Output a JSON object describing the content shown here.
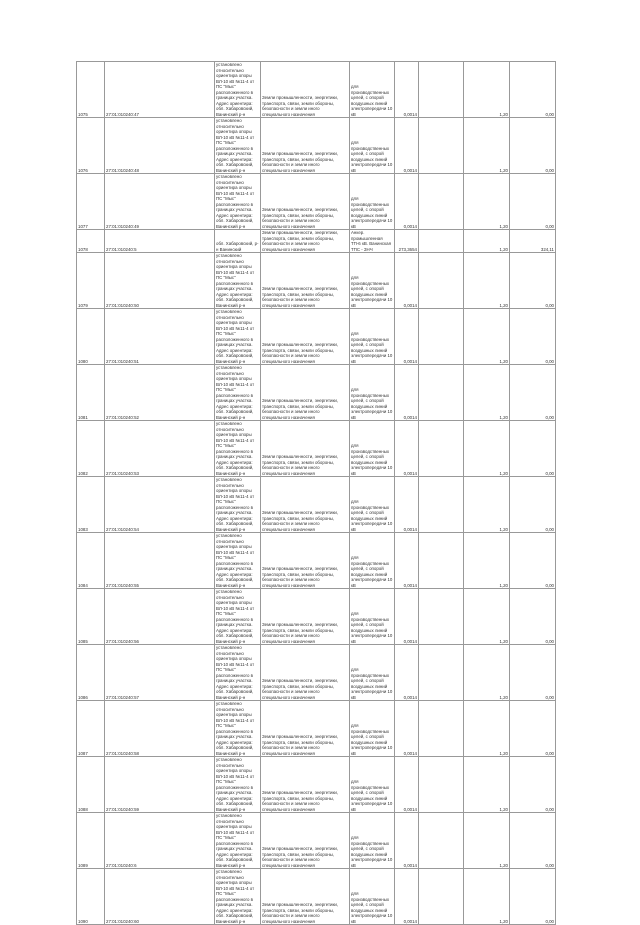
{
  "rows": [
    {
      "no": "1075",
      "cad": "27:01:010240:47",
      "loc": "установлено относительно ориентира опоры ВЛ-10 кВ №11-4 от ПС \"Мыс\" расположенного в границах участка. Адрес ориентира: обл. Хабаровский, Ванинский р-н",
      "cat": "Земли промышленности, энергетики, транспорта, связи, земли обороны, безопасности и земли иного специального назначения",
      "use": "для производственных целей, с опорой воздушных линий электропередачи 10 кВ",
      "area": "0,0014",
      "rate": "1,20",
      "sum": "0,00"
    },
    {
      "no": "1076",
      "cad": "27:01:010240:48",
      "loc": "установлено относительно ориентира опоры ВЛ-10 кВ №11-4 от ПС \"Мыс\" расположенного в границах участка. Адрес ориентира: обл. Хабаровский, Ванинский р-н",
      "cat": "Земли промышленности, энергетики, транспорта, связи, земли обороны, безопасности и земли иного специального назначения",
      "use": "для производственных целей, с опорой воздушных линий электропередачи 10 кВ",
      "area": "0,0014",
      "rate": "1,20",
      "sum": "0,00"
    },
    {
      "no": "1077",
      "cad": "27:01:010240:49",
      "loc": "установлено относительно ориентира опоры ВЛ-10 кВ №11-4 от ПС \"Мыс\" расположенного в границах участка. Адрес ориентира: обл. Хабаровский, Ванинский р-н",
      "cat": "Земли промышленности, энергетики, транспорта, связи, земли обороны, безопасности и земли иного специального назначения",
      "use": "для производственных целей, с опорой воздушных линий электропередачи 10 кВ",
      "area": "0,0014",
      "rate": "1,20",
      "sum": "0,00"
    },
    {
      "no": "1078",
      "cad": "27:01:010240:5",
      "loc": "обл. Хабаровский, р-н Ванинский",
      "cat": "Земли промышленности, энергетики, транспорта, связи, земли обороны, безопасности и земли иного специального назначения",
      "use": "Анкер. промышленная ТП-6 кВ. Ванинская ТПС - ЗНЧ",
      "area": "273,3654",
      "rate": "1,20",
      "sum": "324,11"
    },
    {
      "no": "1079",
      "cad": "27:01:010240:50",
      "loc": "установлено относительно ориентира опоры ВЛ-10 кВ №11-4 от ПС \"Мыс\" расположенного в границах участка. Адрес ориентира: обл. Хабаровский, Ванинский р-н",
      "cat": "Земли промышленности, энергетики, транспорта, связи, земли обороны, безопасности и земли иного специального назначения",
      "use": "для производственных целей, с опорой воздушных линий электропередачи 10 кВ",
      "area": "0,0014",
      "rate": "1,20",
      "sum": "0,00"
    },
    {
      "no": "1080",
      "cad": "27:01:010240:51",
      "loc": "установлено относительно ориентира опоры ВЛ-10 кВ №11-4 от ПС \"Мыс\" расположенного в границах участка. Адрес ориентира: обл. Хабаровский, Ванинский р-н",
      "cat": "Земли промышленности, энергетики, транспорта, связи, земли обороны, безопасности и земли иного специального назначения",
      "use": "для производственных целей, с опорой воздушных линий электропередачи 10 кВ",
      "area": "0,0014",
      "rate": "1,20",
      "sum": "0,00"
    },
    {
      "no": "1081",
      "cad": "27:01:010240:52",
      "loc": "установлено относительно ориентира опоры ВЛ-10 кВ №11-4 от ПС \"Мыс\" расположенного в границах участка. Адрес ориентира: обл. Хабаровский, Ванинский р-н",
      "cat": "Земли промышленности, энергетики, транспорта, связи, земли обороны, безопасности и земли иного специального назначения",
      "use": "для производственных целей, с опорой воздушных линий электропередачи 10 кВ",
      "area": "0,0014",
      "rate": "1,20",
      "sum": "0,00"
    },
    {
      "no": "1082",
      "cad": "27:01:010240:53",
      "loc": "установлено относительно ориентира опоры ВЛ-10 кВ №11-4 от ПС \"Мыс\" расположенного в границах участка. Адрес ориентира: обл. Хабаровский, Ванинский р-н",
      "cat": "Земли промышленности, энергетики, транспорта, связи, земли обороны, безопасности и земли иного специального назначения",
      "use": "для производственных целей, с опорой воздушных линий электропередачи 10 кВ",
      "area": "0,0014",
      "rate": "1,20",
      "sum": "0,00"
    },
    {
      "no": "1083",
      "cad": "27:01:010240:54",
      "loc": "установлено относительно ориентира опоры ВЛ-10 кВ №11-4 от ПС \"Мыс\" расположенного в границах участка. Адрес ориентира: обл. Хабаровский, Ванинский р-н",
      "cat": "Земли промышленности, энергетики, транспорта, связи, земли обороны, безопасности и земли иного специального назначения",
      "use": "для производственных целей, с опорой воздушных линий электропередачи 10 кВ",
      "area": "0,0014",
      "rate": "1,20",
      "sum": "0,00"
    },
    {
      "no": "1084",
      "cad": "27:01:010240:55",
      "loc": "установлено относительно ориентира опоры ВЛ-10 кВ №11-4 от ПС \"Мыс\" расположенного в границах участка. Адрес ориентира: обл. Хабаровский, Ванинский р-н",
      "cat": "Земли промышленности, энергетики, транспорта, связи, земли обороны, безопасности и земли иного специального назначения",
      "use": "для производственных целей, с опорой воздушных линий электропередачи 10 кВ",
      "area": "0,0014",
      "rate": "1,20",
      "sum": "0,00"
    },
    {
      "no": "1085",
      "cad": "27:01:010240:56",
      "loc": "установлено относительно ориентира опоры ВЛ-10 кВ №11-4 от ПС \"Мыс\" расположенного в границах участка. Адрес ориентира: обл. Хабаровский, Ванинский р-н",
      "cat": "Земли промышленности, энергетики, транспорта, связи, земли обороны, безопасности и земли иного специального назначения",
      "use": "для производственных целей, с опорой воздушных линий электропередачи 10 кВ",
      "area": "0,0014",
      "rate": "1,20",
      "sum": "0,00"
    },
    {
      "no": "1086",
      "cad": "27:01:010240:57",
      "loc": "установлено относительно ориентира опоры ВЛ-10 кВ №11-4 от ПС \"Мыс\" расположенного в границах участка. Адрес ориентира: обл. Хабаровский, Ванинский р-н",
      "cat": "Земли промышленности, энергетики, транспорта, связи, земли обороны, безопасности и земли иного специального назначения",
      "use": "для производственных целей, с опорой воздушных линий электропередачи 10 кВ",
      "area": "0,0014",
      "rate": "1,20",
      "sum": "0,00"
    },
    {
      "no": "1087",
      "cad": "27:01:010240:58",
      "loc": "установлено относительно ориентира опоры ВЛ-10 кВ №11-4 от ПС \"Мыс\" расположенного в границах участка. Адрес ориентира: обл. Хабаровский, Ванинский р-н",
      "cat": "Земли промышленности, энергетики, транспорта, связи, земли обороны, безопасности и земли иного специального назначения",
      "use": "для производственных целей, с опорой воздушных линий электропередачи 10 кВ",
      "area": "0,0014",
      "rate": "1,20",
      "sum": "0,00"
    },
    {
      "no": "1088",
      "cad": "27:01:010240:59",
      "loc": "установлено относительно ориентира опоры ВЛ-10 кВ №11-4 от ПС \"Мыс\" расположенного в границах участка. Адрес ориентира: обл. Хабаровский, Ванинский р-н",
      "cat": "Земли промышленности, энергетики, транспорта, связи, земли обороны, безопасности и земли иного специального назначения",
      "use": "для производственных целей, с опорой воздушных линий электропередачи 10 кВ",
      "area": "0,0014",
      "rate": "1,20",
      "sum": "0,00"
    },
    {
      "no": "1089",
      "cad": "27:01:010240:6",
      "loc": "установлено относительно ориентира опоры ВЛ-10 кВ №11-4 от ПС \"Мыс\" расположенного в границах участка. Адрес ориентира: обл. Хабаровский, Ванинский р-н",
      "cat": "Земли промышленности, энергетики, транспорта, связи, земли обороны, безопасности и земли иного специального назначения",
      "use": "для производственных целей, с опорой воздушных линий электропередачи 10 кВ",
      "area": "0,0014",
      "rate": "1,20",
      "sum": "0,00"
    },
    {
      "no": "1090",
      "cad": "27:01:010240:60",
      "loc": "установлено относительно ориентира опоры ВЛ-10 кВ №11-4 от ПС \"Мыс\" расположенного в границах участка. Адрес ориентира: обл. Хабаровский, Ванинский р-н",
      "cat": "Земли промышленности, энергетики, транспорта, связи, земли обороны, безопасности и земли иного специального назначения",
      "use": "для производственных целей, с опорой воздушных линий электропередачи 10 кВ",
      "area": "0,0014",
      "rate": "1,20",
      "sum": "0,00"
    }
  ]
}
